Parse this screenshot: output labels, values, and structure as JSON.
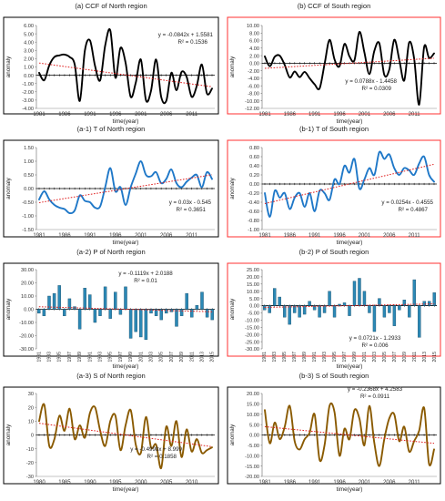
{
  "colors": {
    "ccf": "#000000",
    "temperature": "#1f78c8",
    "precip_fill": "#2b88b5",
    "scaled": "#8a5a00",
    "trend": "#e02020",
    "north_frame": "#000000",
    "south_frame": "#ff3030"
  },
  "chart_data": [
    {
      "id": "a",
      "type": "line",
      "title": "(a) CCF of North region",
      "xlabel": "time(year)",
      "ylabel": "anomaly",
      "ylim": [
        -4,
        6
      ],
      "yticks": [
        "6.00",
        "5.00",
        "4.00",
        "3.00",
        "2.00",
        "1.00",
        "0.00",
        "-1.00",
        "-2.00",
        "-3.00",
        "-4.00"
      ],
      "xticks": [
        "1981",
        "1986",
        "1991",
        "1996",
        "2001",
        "2006",
        "2011"
      ],
      "x": [
        1981,
        1982,
        1983,
        1984,
        1985,
        1986,
        1987,
        1988,
        1989,
        1990,
        1991,
        1992,
        1993,
        1994,
        1995,
        1996,
        1997,
        1998,
        1999,
        2000,
        2001,
        2002,
        2003,
        2004,
        2005,
        2006,
        2007,
        2008,
        2009,
        2010,
        2011,
        2012,
        2013,
        2014,
        2015
      ],
      "values": [
        0.3,
        -0.6,
        1.2,
        2.2,
        2.4,
        2.5,
        2.2,
        1.3,
        -3.1,
        3.0,
        4.2,
        1.1,
        -0.6,
        3.6,
        5.4,
        -0.3,
        3.3,
        1.5,
        -2.6,
        -0.9,
        1.9,
        -3.0,
        -1.9,
        1.9,
        -2.6,
        -3.1,
        0.3,
        -1.8,
        0.4,
        -0.2,
        -2.6,
        -1.3,
        1.3,
        -2.2,
        -1.6
      ],
      "trend_equation": "y = -0.0842x + 1.5581",
      "r2_label": "R² = 0.1536",
      "trend": {
        "slope": -0.0842,
        "intercept": 1.5581
      },
      "frame": "north"
    },
    {
      "id": "b",
      "type": "line",
      "title": "(b) CCF of South region",
      "xlabel": "time(year)",
      "ylabel": "anomaly",
      "ylim": [
        -12,
        10
      ],
      "yticks": [
        "10.00",
        "8.00",
        "6.00",
        "4.00",
        "2.00",
        "0.00",
        "-2.00",
        "-4.00",
        "-6.00",
        "-8.00",
        "-10.00",
        "-12.00"
      ],
      "xticks": [
        "1981",
        "1986",
        "1991",
        "1996",
        "2001",
        "2006",
        "2011"
      ],
      "x": [
        1981,
        1982,
        1983,
        1984,
        1985,
        1986,
        1987,
        1988,
        1989,
        1990,
        1991,
        1992,
        1993,
        1994,
        1995,
        1996,
        1997,
        1998,
        1999,
        2000,
        2001,
        2002,
        2003,
        2004,
        2005,
        2006,
        2007,
        2008,
        2009,
        2010,
        2011,
        2012,
        2013,
        2014,
        2015
      ],
      "values": [
        1.8,
        -0.8,
        1.7,
        2.0,
        -0.5,
        -3.8,
        -2.2,
        -3.7,
        -2.3,
        -4.0,
        -5.6,
        -6.7,
        -0.3,
        6.2,
        1.0,
        -0.8,
        5.1,
        1.8,
        0.8,
        8.3,
        2.9,
        -2.9,
        3.3,
        5.3,
        -3.1,
        -1.7,
        6.2,
        1.0,
        -4.6,
        5.5,
        1.2,
        -11.0,
        4.3,
        1.4,
        2.6
      ],
      "trend_equation": "y = 0.0788x - 1.4458",
      "r2_label": "R² = 0.0309",
      "trend": {
        "slope": 0.0788,
        "intercept": -1.4458
      },
      "frame": "south"
    },
    {
      "id": "a1",
      "type": "line",
      "title": "(a-1) T of North region",
      "xlabel": "time(year)",
      "ylabel": "anomaly",
      "ylim": [
        -1.5,
        1.5
      ],
      "yticks": [
        "1.50",
        "1.00",
        "0.50",
        "0.00",
        "-0.50",
        "-1.00",
        "-1.50"
      ],
      "xticks": [
        "1981",
        "1986",
        "1991",
        "1996",
        "2001",
        "2006",
        "2011"
      ],
      "x": [
        1981,
        1982,
        1983,
        1984,
        1985,
        1986,
        1987,
        1988,
        1989,
        1990,
        1991,
        1992,
        1993,
        1994,
        1995,
        1996,
        1997,
        1998,
        1999,
        2000,
        2001,
        2002,
        2003,
        2004,
        2005,
        2006,
        2007,
        2008,
        2009,
        2010,
        2011,
        2012,
        2013,
        2014,
        2015
      ],
      "values": [
        -0.4,
        -0.1,
        -0.4,
        -0.6,
        -0.7,
        -0.75,
        -0.9,
        -0.8,
        -0.25,
        -0.45,
        -0.5,
        -0.7,
        -0.65,
        0.05,
        0.75,
        -0.1,
        0.05,
        -0.6,
        0.05,
        0.55,
        1.0,
        0.5,
        0.45,
        0.6,
        0.2,
        0.35,
        0.7,
        0.2,
        0.05,
        0.25,
        0.4,
        0.5,
        0.05,
        0.6,
        0.35
      ],
      "trend_equation": "y = 0.03x - 0.545",
      "r2_label": "R² = 0.3651",
      "trend": {
        "slope": 0.03,
        "intercept": -0.545
      },
      "frame": "north"
    },
    {
      "id": "b1",
      "type": "line",
      "title": "(b-1) T of South region",
      "xlabel": "time(year)",
      "ylabel": "anomaly",
      "ylim": [
        -1.0,
        0.8
      ],
      "yticks": [
        "0.80",
        "0.60",
        "0.40",
        "0.20",
        "0.00",
        "-0.20",
        "-0.40",
        "-0.60",
        "-0.80",
        "-1.00"
      ],
      "xticks": [
        "1981",
        "1986",
        "1991",
        "1996",
        "2001",
        "2006",
        "2011"
      ],
      "x": [
        1981,
        1982,
        1983,
        1984,
        1985,
        1986,
        1987,
        1988,
        1989,
        1990,
        1991,
        1992,
        1993,
        1994,
        1995,
        1996,
        1997,
        1998,
        1999,
        2000,
        2001,
        2002,
        2003,
        2004,
        2005,
        2006,
        2007,
        2008,
        2009,
        2010,
        2011,
        2012,
        2013,
        2014,
        2015
      ],
      "values": [
        -0.2,
        -0.72,
        -0.15,
        -0.3,
        -0.2,
        -0.55,
        -0.3,
        -0.2,
        -0.5,
        -0.2,
        -0.6,
        -0.15,
        -0.2,
        -0.35,
        0.1,
        0.0,
        0.4,
        0.25,
        0.55,
        -0.1,
        0.1,
        0.35,
        0.2,
        0.7,
        0.55,
        0.65,
        0.35,
        0.2,
        0.35,
        0.3,
        0.2,
        0.45,
        0.6,
        0.2,
        0.05
      ],
      "trend_equation": "y = 0.0254x - 0.4555",
      "r2_label": "R² = 0.4867",
      "trend": {
        "slope": 0.0254,
        "intercept": -0.4555
      },
      "frame": "south"
    },
    {
      "id": "a2",
      "type": "bar",
      "title": "(a-2) P of North region",
      "xlabel": "time(year)",
      "ylabel": "anomaly",
      "ylim": [
        -30,
        30
      ],
      "yticks": [
        "30.00",
        "20.00",
        "10.00",
        "0.00",
        "-10.00",
        "-20.00",
        "-30.00"
      ],
      "categories": [
        "1981",
        "1983",
        "1985",
        "1987",
        "1989",
        "1991",
        "1993",
        "1995",
        "1997",
        "1999",
        "2001",
        "2003",
        "2005",
        "2007",
        "2009",
        "2011",
        "2013",
        "2015"
      ],
      "x": [
        1981,
        1982,
        1983,
        1984,
        1985,
        1986,
        1987,
        1988,
        1989,
        1990,
        1991,
        1992,
        1993,
        1994,
        1995,
        1996,
        1997,
        1998,
        1999,
        2000,
        2001,
        2002,
        2003,
        2004,
        2005,
        2006,
        2007,
        2008,
        2009,
        2010,
        2011,
        2012,
        2013,
        2014,
        2015
      ],
      "values": [
        -3,
        -5,
        10,
        12,
        18,
        -5,
        8,
        2,
        -15,
        16,
        11,
        -10,
        -5,
        17,
        -7,
        13,
        -4,
        17,
        -22,
        -17,
        -21,
        -23,
        -3,
        -5,
        -8,
        -3,
        -2,
        -13,
        -5,
        12,
        -6,
        3,
        13,
        -6,
        -8
      ],
      "trend_equation": "y = -0.1119x + 2.0188",
      "r2_label": "R² = 0.01",
      "trend": {
        "slope": -0.1119,
        "intercept": 2.0188
      },
      "frame": "north"
    },
    {
      "id": "b2",
      "type": "bar",
      "title": "(b-2) P of South region",
      "xlabel": "time(year)",
      "ylabel": "anomaly",
      "ylim": [
        -30,
        25
      ],
      "yticks": [
        "25.00",
        "20.00",
        "15.00",
        "10.00",
        "5.00",
        "0.00",
        "-5.00",
        "-10.00",
        "-15.00",
        "-20.00",
        "-25.00",
        "-30.00"
      ],
      "categories": [
        "1981",
        "1983",
        "1985",
        "1987",
        "1989",
        "1991",
        "1993",
        "1995",
        "1997",
        "1999",
        "2001",
        "2003",
        "2005",
        "2007",
        "2009",
        "2011",
        "2013",
        "2015"
      ],
      "x": [
        1981,
        1982,
        1983,
        1984,
        1985,
        1986,
        1987,
        1988,
        1989,
        1990,
        1991,
        1992,
        1993,
        1994,
        1995,
        1996,
        1997,
        1998,
        1999,
        2000,
        2001,
        2002,
        2003,
        2004,
        2005,
        2006,
        2007,
        2008,
        2009,
        2010,
        2011,
        2012,
        2013,
        2014,
        2015
      ],
      "values": [
        -3,
        -5,
        12,
        6,
        -8,
        -13,
        -5,
        -8,
        -6,
        3,
        -3,
        -8,
        -5,
        10,
        -8,
        1,
        2,
        -7,
        17,
        19,
        10,
        -5,
        -18,
        5,
        -8,
        -5,
        -14,
        -3,
        4,
        -8,
        18,
        -22,
        3,
        3,
        9
      ],
      "trend_equation": "y = 0.0721x - 1.2933",
      "r2_label": "R² = 0.006",
      "trend": {
        "slope": 0.0721,
        "intercept": -1.2933
      },
      "frame": "south"
    },
    {
      "id": "a3",
      "type": "line",
      "title": "(a-3) S of North region",
      "xlabel": "time(year)",
      "ylabel": "anomaly",
      "ylim": [
        -30,
        30
      ],
      "yticks": [
        "30",
        "20",
        "10",
        "0",
        "-10",
        "-20",
        "-30"
      ],
      "xticks": [
        "1980",
        "1985",
        "1990",
        "1995",
        "2000",
        "2005",
        "2010"
      ],
      "x": [
        1981,
        1982,
        1983,
        1984,
        1985,
        1986,
        1987,
        1988,
        1989,
        1990,
        1991,
        1992,
        1993,
        1994,
        1995,
        1996,
        1997,
        1998,
        1999,
        2000,
        2001,
        2002,
        2003,
        2004,
        2005,
        2006,
        2007,
        2008,
        2009,
        2010,
        2011,
        2012,
        2013,
        2014,
        2015
      ],
      "values": [
        10,
        22,
        -8,
        -3,
        14,
        3,
        19,
        -3,
        7,
        -2,
        16,
        20,
        3,
        -8,
        10,
        14,
        -11,
        7,
        18,
        -7,
        -13,
        13,
        -9,
        -7,
        -24,
        6,
        -8,
        10,
        -16,
        4,
        -12,
        -3,
        -13,
        -11,
        -9
      ],
      "trend_equation": "y = -0.4998x + 8.999",
      "r2_label": "R² = 0.1858",
      "trend": {
        "slope": -0.4998,
        "intercept": 8.999
      },
      "frame": "north"
    },
    {
      "id": "b3",
      "type": "line",
      "title": "(b-3) S of South region",
      "xlabel": "time(year)",
      "ylabel": "anomaly",
      "ylim": [
        -20,
        20
      ],
      "yticks": [
        "20.00",
        "15.00",
        "10.00",
        "5.00",
        "0.00",
        "-5.00",
        "-10.00",
        "-15.00",
        "-20.00"
      ],
      "xticks": [
        "1981",
        "1986",
        "1991",
        "1996",
        "2001",
        "2006",
        "2011"
      ],
      "x": [
        1981,
        1982,
        1983,
        1984,
        1985,
        1986,
        1987,
        1988,
        1989,
        1990,
        1991,
        1992,
        1993,
        1994,
        1995,
        1996,
        1997,
        1998,
        1999,
        2000,
        2001,
        2002,
        2003,
        2004,
        2005,
        2006,
        2007,
        2008,
        2009,
        2010,
        2011,
        2012,
        2013,
        2014,
        2015
      ],
      "values": [
        12,
        -4,
        6,
        -2,
        4,
        14,
        -3,
        -7,
        -2,
        1,
        10,
        -12,
        -5,
        14,
        11,
        -10,
        3,
        -2,
        12,
        8,
        -5,
        14,
        -4,
        -15,
        -2,
        8,
        10,
        -3,
        4,
        -8,
        -3,
        2,
        13,
        -14,
        -7
      ],
      "trend_equation": "y = -0.2368x + 4.2583",
      "r2_label": "R² = 0.0911",
      "trend": {
        "slope": -0.2368,
        "intercept": 4.2583
      },
      "frame": "north"
    }
  ]
}
